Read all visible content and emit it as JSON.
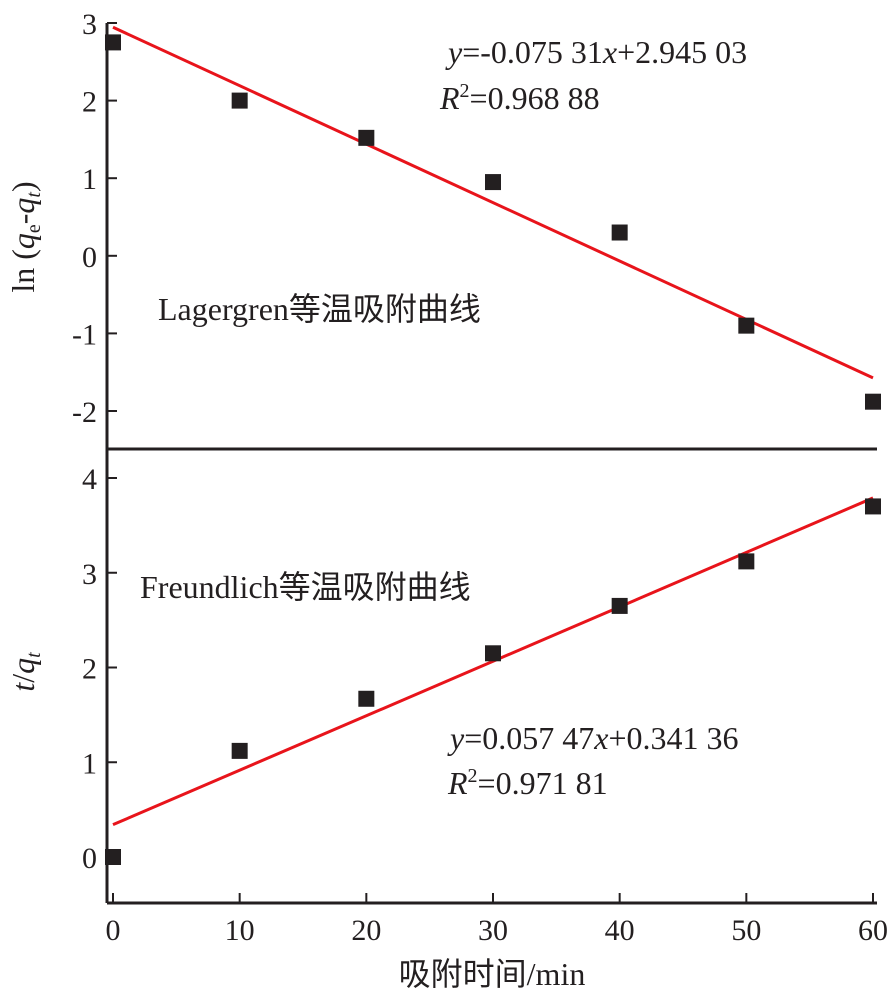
{
  "colors": {
    "axis": "#231f20",
    "fit_line": "#e8141b",
    "marker": "#231f20"
  },
  "chart_data": [
    {
      "type": "scatter",
      "panel": "top",
      "annotation": "Lagergren等温吸附曲线",
      "ylabel": "ln (qe-qt)",
      "ylabel_parts": {
        "prefix": "ln (",
        "v1": "q",
        "s1": "e",
        "dash": "-",
        "v2": "q",
        "s2": "t",
        "suffix": ")"
      },
      "ylim": [
        -2.5,
        3
      ],
      "yticks": [
        3,
        2,
        1,
        0,
        -1,
        -2
      ],
      "ytick_labels": [
        "3",
        "2",
        "1",
        "0",
        "-1",
        "-2"
      ],
      "x": [
        0,
        10,
        20,
        30,
        40,
        50,
        60
      ],
      "y": [
        2.75,
        2.0,
        1.52,
        0.95,
        0.3,
        -0.9,
        -1.88
      ],
      "fit": {
        "slope": -0.07531,
        "intercept": 2.94503,
        "x_range": [
          0,
          60
        ]
      },
      "equation": {
        "y": "y",
        "eq1": "=-0.075 31",
        "x": "x",
        "eq2": "+2.945 03"
      },
      "r2": {
        "r": "R",
        "sup": "2",
        "val": "=0.968 88"
      },
      "legend": "none",
      "grid": false
    },
    {
      "type": "scatter",
      "panel": "bottom",
      "annotation": "Freundlich等温吸附曲线",
      "ylabel": "t/qt",
      "ylabel_parts": {
        "v1": "t",
        "slash": "/",
        "v2": "q",
        "s2": "t"
      },
      "ylim": [
        -0.5,
        4.3
      ],
      "yticks": [
        0,
        1,
        2,
        3,
        4
      ],
      "ytick_labels": [
        "0",
        "1",
        "2",
        "3",
        "4"
      ],
      "x": [
        0,
        10,
        20,
        30,
        40,
        50,
        60
      ],
      "y": [
        0.0,
        1.12,
        1.67,
        2.15,
        2.65,
        3.12,
        3.7
      ],
      "fit": {
        "slope": 0.05747,
        "intercept": 0.34136,
        "x_range": [
          0,
          60
        ]
      },
      "equation": {
        "y": "y",
        "eq1": "=0.057 47",
        "x": "x",
        "eq2": "+0.341 36"
      },
      "r2": {
        "r": "R",
        "sup": "2",
        "val": "=0.971 81"
      },
      "legend": "none",
      "grid": false
    }
  ],
  "x_axis": {
    "xlabel": "吸附时间/min",
    "xlim": [
      0,
      60
    ],
    "xticks": [
      0,
      10,
      20,
      30,
      40,
      50,
      60
    ],
    "xtick_labels": [
      "0",
      "10",
      "20",
      "30",
      "40",
      "50",
      "60"
    ]
  }
}
